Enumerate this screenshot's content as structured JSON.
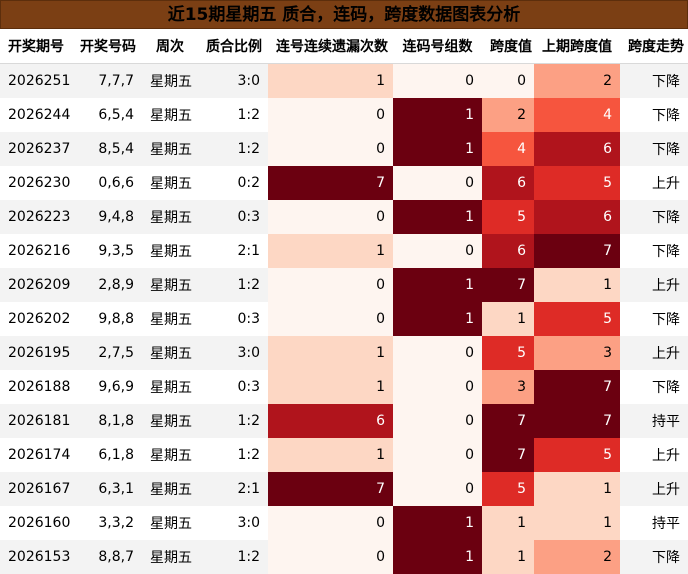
{
  "title": "近15期星期五 质合，连码，跨度数据图表分析",
  "headers": [
    "开奖期号",
    "开奖号码",
    "周次",
    "质合比例",
    "连号连续遗漏次数",
    "连码号组数",
    "跨度值",
    "上期跨度值",
    "跨度走势"
  ],
  "colors": {
    "title_bg": "#7b3f14",
    "scale": [
      "#fef5f0",
      "#fdd7c4",
      "#fca084",
      "#f6553e",
      "#de2b26",
      "#b0141c",
      "#6b0010"
    ],
    "row_alt": "#f3f3f3",
    "light_text": "#000000",
    "dark_text": "#ffffff"
  },
  "rows": [
    {
      "issue": "2026251",
      "numbers": "7,7,7",
      "week": "星期五",
      "ratio": "3:0",
      "miss": "1",
      "groups": "0",
      "span": "0",
      "prev_span": "2",
      "trend": "下降"
    },
    {
      "issue": "2026244",
      "numbers": "6,5,4",
      "week": "星期五",
      "ratio": "1:2",
      "miss": "0",
      "groups": "1",
      "span": "2",
      "prev_span": "4",
      "trend": "下降"
    },
    {
      "issue": "2026237",
      "numbers": "8,5,4",
      "week": "星期五",
      "ratio": "1:2",
      "miss": "0",
      "groups": "1",
      "span": "4",
      "prev_span": "6",
      "trend": "下降"
    },
    {
      "issue": "2026230",
      "numbers": "0,6,6",
      "week": "星期五",
      "ratio": "0:2",
      "miss": "7",
      "groups": "0",
      "span": "6",
      "prev_span": "5",
      "trend": "上升"
    },
    {
      "issue": "2026223",
      "numbers": "9,4,8",
      "week": "星期五",
      "ratio": "0:3",
      "miss": "0",
      "groups": "1",
      "span": "5",
      "prev_span": "6",
      "trend": "下降"
    },
    {
      "issue": "2026216",
      "numbers": "9,3,5",
      "week": "星期五",
      "ratio": "2:1",
      "miss": "1",
      "groups": "0",
      "span": "6",
      "prev_span": "7",
      "trend": "下降"
    },
    {
      "issue": "2026209",
      "numbers": "2,8,9",
      "week": "星期五",
      "ratio": "1:2",
      "miss": "0",
      "groups": "1",
      "span": "7",
      "prev_span": "1",
      "trend": "上升"
    },
    {
      "issue": "2026202",
      "numbers": "9,8,8",
      "week": "星期五",
      "ratio": "0:3",
      "miss": "0",
      "groups": "1",
      "span": "1",
      "prev_span": "5",
      "trend": "下降"
    },
    {
      "issue": "2026195",
      "numbers": "2,7,5",
      "week": "星期五",
      "ratio": "3:0",
      "miss": "1",
      "groups": "0",
      "span": "5",
      "prev_span": "3",
      "trend": "上升"
    },
    {
      "issue": "2026188",
      "numbers": "9,6,9",
      "week": "星期五",
      "ratio": "0:3",
      "miss": "1",
      "groups": "0",
      "span": "3",
      "prev_span": "7",
      "trend": "下降"
    },
    {
      "issue": "2026181",
      "numbers": "8,1,8",
      "week": "星期五",
      "ratio": "1:2",
      "miss": "6",
      "groups": "0",
      "span": "7",
      "prev_span": "7",
      "trend": "持平"
    },
    {
      "issue": "2026174",
      "numbers": "6,1,8",
      "week": "星期五",
      "ratio": "1:2",
      "miss": "1",
      "groups": "0",
      "span": "7",
      "prev_span": "5",
      "trend": "上升"
    },
    {
      "issue": "2026167",
      "numbers": "6,3,1",
      "week": "星期五",
      "ratio": "2:1",
      "miss": "7",
      "groups": "0",
      "span": "5",
      "prev_span": "1",
      "trend": "上升"
    },
    {
      "issue": "2026160",
      "numbers": "3,3,2",
      "week": "星期五",
      "ratio": "3:0",
      "miss": "0",
      "groups": "1",
      "span": "1",
      "prev_span": "1",
      "trend": "持平"
    },
    {
      "issue": "2026153",
      "numbers": "8,8,7",
      "week": "星期五",
      "ratio": "1:2",
      "miss": "0",
      "groups": "1",
      "span": "1",
      "prev_span": "2",
      "trend": "下降"
    }
  ]
}
